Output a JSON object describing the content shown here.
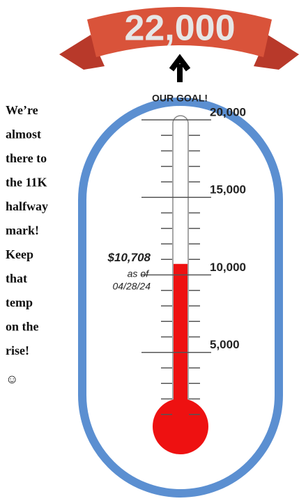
{
  "chart_data": {
    "type": "thermometer",
    "goal": {
      "value": 22000,
      "label": "22,000"
    },
    "goal_note": "OUR GOAL!",
    "value": 10708,
    "value_label": "$10,708",
    "date_prefix": "as of",
    "date": "04/28/24",
    "ylim": [
      0,
      20000
    ],
    "yticks": [
      {
        "value": 5000,
        "label": "5,000"
      },
      {
        "value": 10000,
        "label": "10,000"
      },
      {
        "value": 15000,
        "label": "15,000"
      },
      {
        "value": 20000,
        "label": "20,000"
      }
    ],
    "yminorticks": [
      1000,
      2000,
      3000,
      4000,
      6000,
      7000,
      8000,
      9000,
      11000,
      12000,
      13000,
      14000,
      16000,
      17000,
      18000,
      19000
    ],
    "color": "#ee1111",
    "message": [
      "We’re",
      "almost",
      "there to",
      "the 11K",
      "halfway",
      "mark!",
      "Keep",
      "that",
      "temp",
      "on the",
      "rise!",
      "☺"
    ]
  }
}
